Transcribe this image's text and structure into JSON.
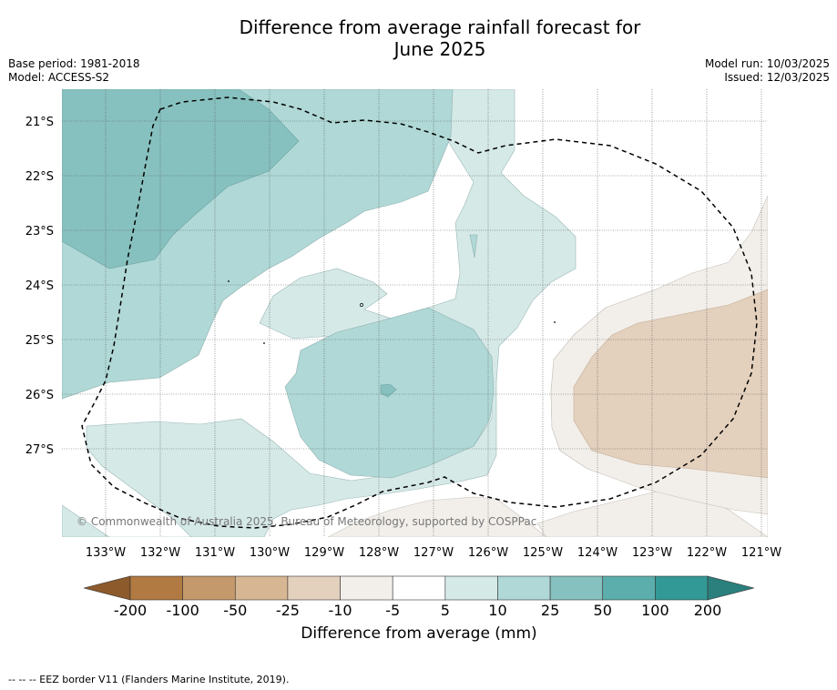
{
  "title_line1": "Difference from average rainfall forecast for",
  "title_line2": "June 2025",
  "base_period": "Base period: 1981-2018",
  "model": "Model: ACCESS-S2",
  "model_run": "Model run: 10/03/2025",
  "issued": "Issued: 12/03/2025",
  "copyright": "© Commonwealth of Australia 2025, Bureau of Meteorology, supported by COSPPac",
  "lat_labels": [
    "21°S",
    "22°S",
    "23°S",
    "24°S",
    "25°S",
    "26°S",
    "27°S"
  ],
  "lon_labels": [
    "133°W",
    "132°W",
    "131°W",
    "130°W",
    "129°W",
    "128°W",
    "127°W",
    "126°W",
    "125°W",
    "124°W",
    "123°W",
    "122°W",
    "121°W"
  ],
  "colorbar": {
    "title": "Difference from average (mm)",
    "ticks": [
      "-200",
      "-100",
      "-50",
      "-25",
      "-10",
      "-5",
      "5",
      "10",
      "25",
      "50",
      "100",
      "200"
    ],
    "colors": [
      "#8c5a2b",
      "#b07a42",
      "#c49a6c",
      "#d7b693",
      "#e3d0bd",
      "#f2efea",
      "#ffffff",
      "#d5e9e7",
      "#afd8d6",
      "#86c1bf",
      "#5caeac",
      "#339997",
      "#2b7f7c"
    ]
  },
  "footnote": "--  --  -- EEZ border V11 (Flanders Marine Institute, 2019)."
}
